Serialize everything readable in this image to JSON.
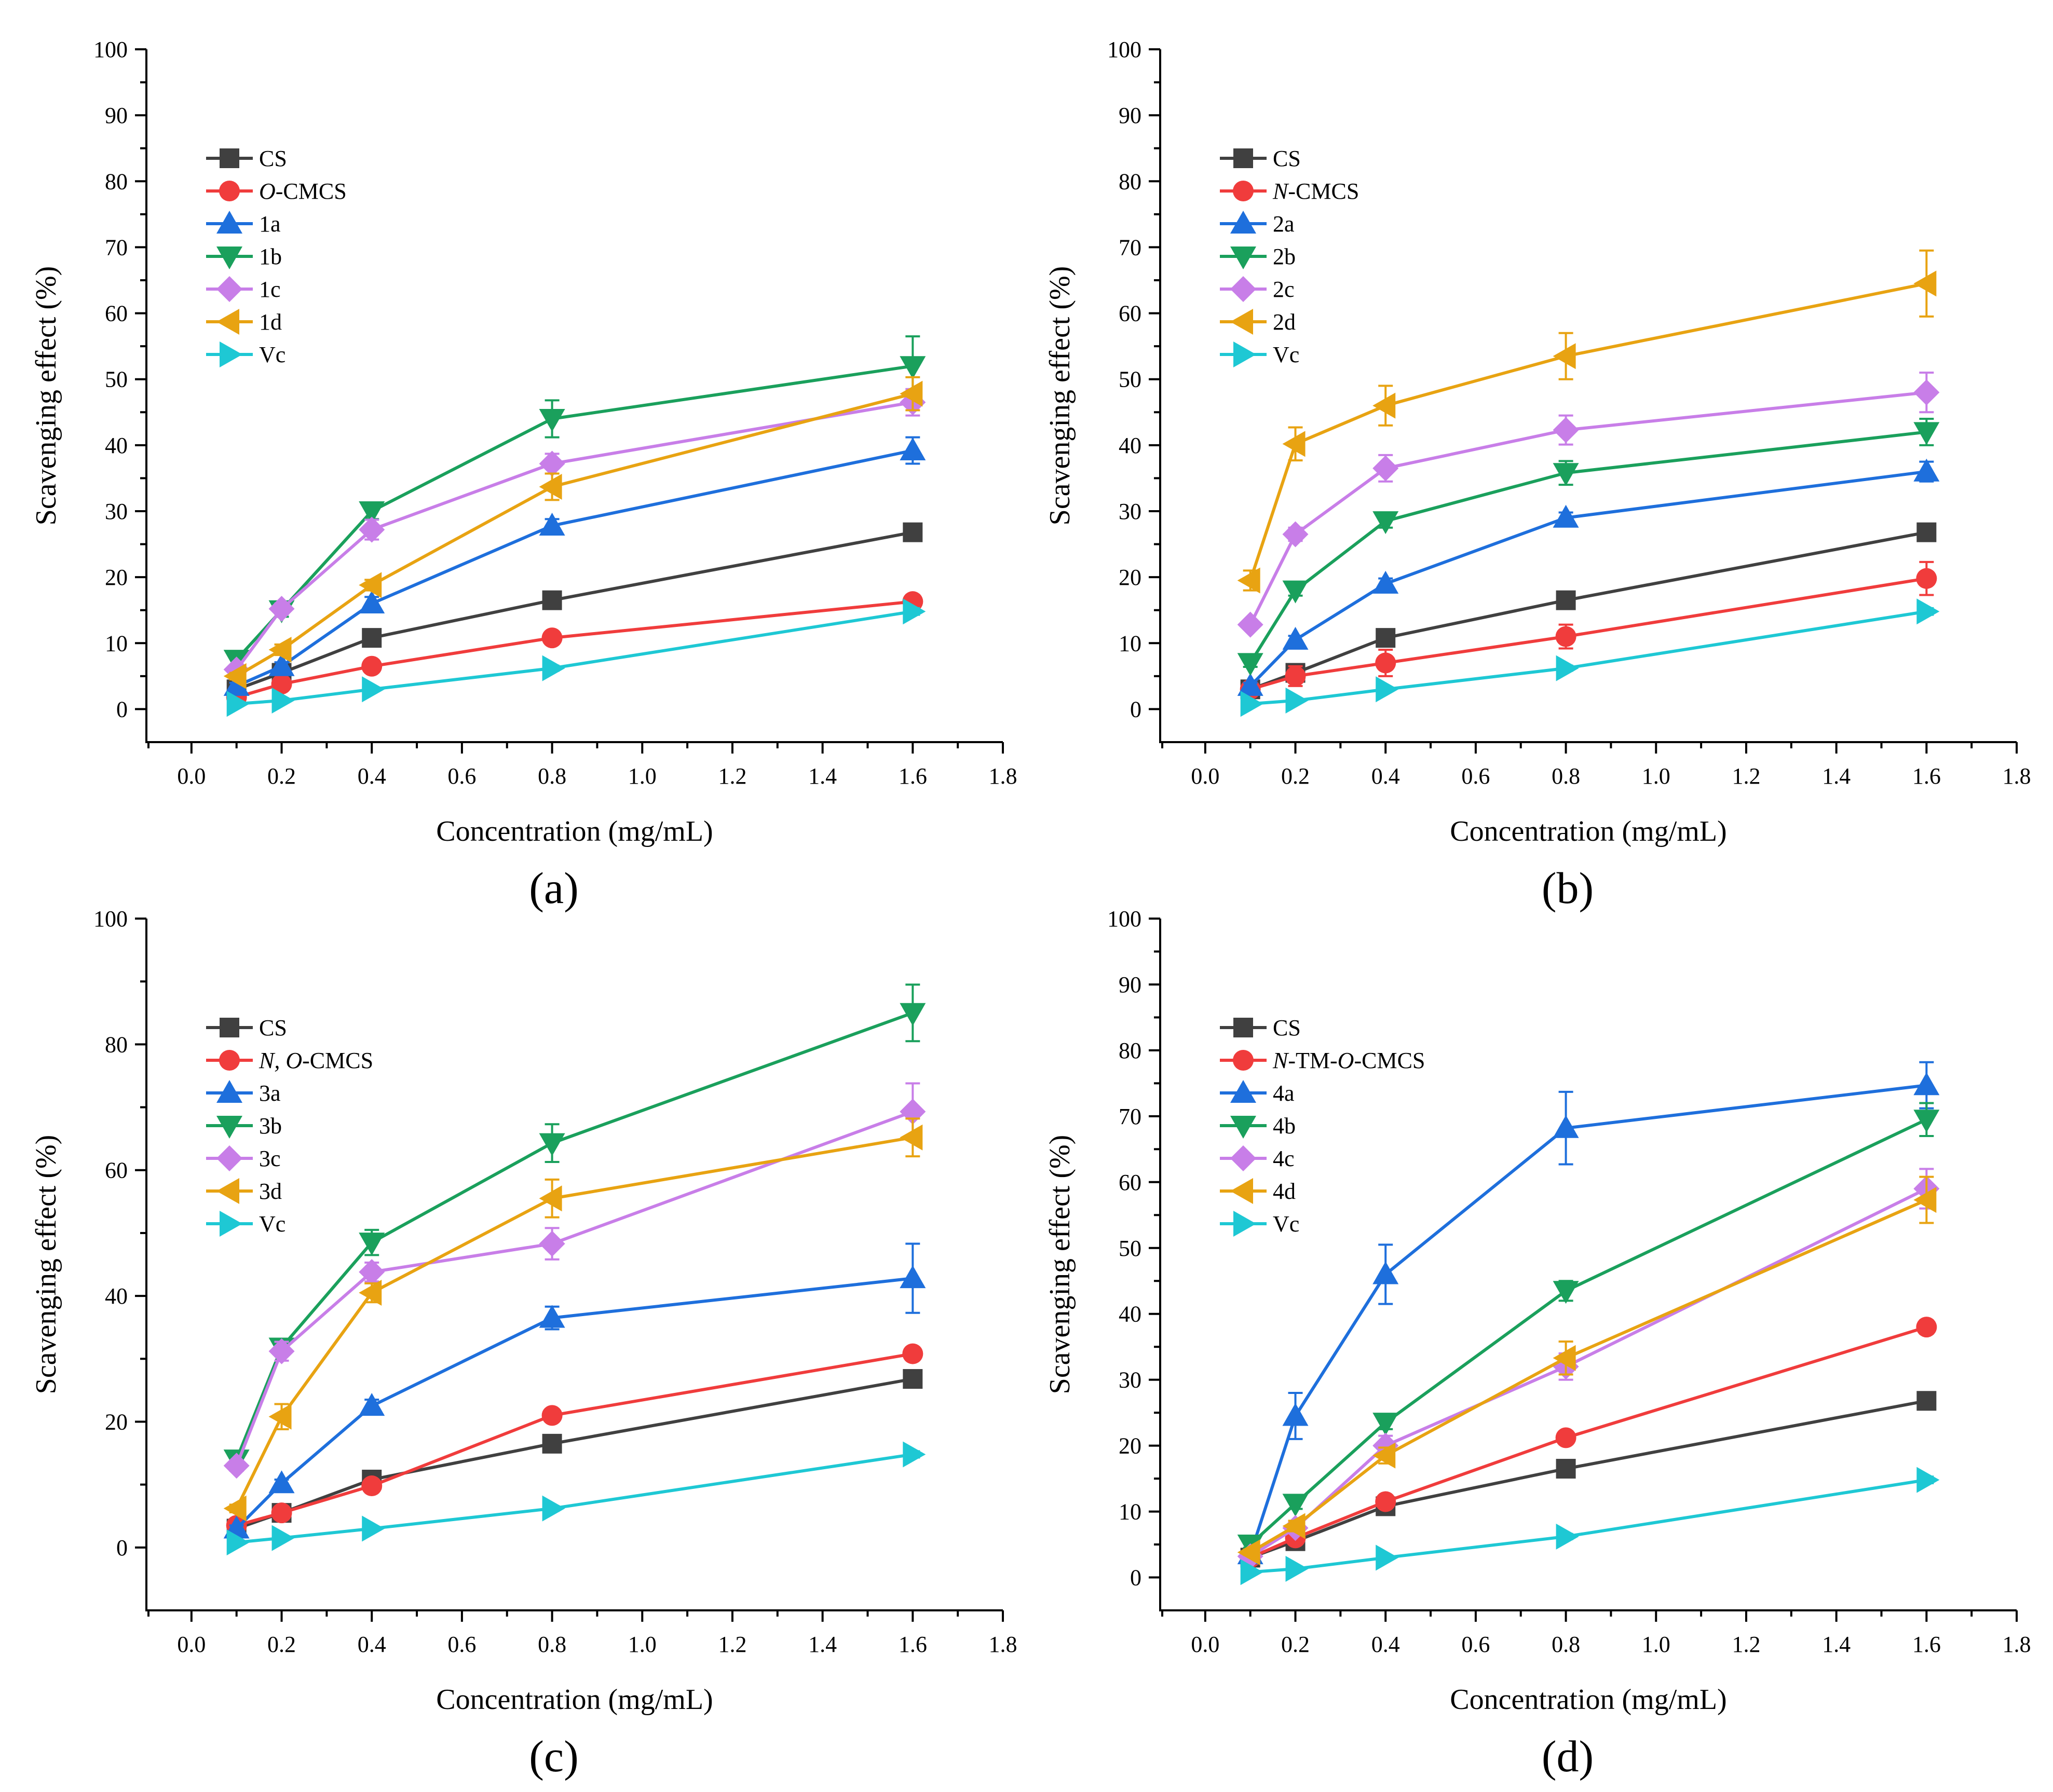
{
  "chart_data": [
    {
      "type": "line",
      "panel": "(a)",
      "xlabel": "Concentration (mg/mL)",
      "ylabel": "Scavenging effect (%)",
      "xlim": [
        -0.1,
        1.8
      ],
      "ylim": [
        -5,
        100
      ],
      "xticks": [
        "0.0",
        "0.2",
        "0.4",
        "0.6",
        "0.8",
        "1.0",
        "1.2",
        "1.4",
        "1.6",
        "1.8"
      ],
      "yticks": [
        "0",
        "10",
        "20",
        "30",
        "40",
        "50",
        "60",
        "70",
        "80",
        "90",
        "100"
      ],
      "x": [
        0.1,
        0.2,
        0.4,
        0.8,
        1.6
      ],
      "legend_position": "upper-left",
      "series": [
        {
          "name": "CS",
          "italic_prefix": "",
          "suffix": "CS",
          "color": "#404040",
          "marker": "square",
          "values": [
            3.0,
            5.5,
            10.8,
            16.5,
            26.8
          ],
          "errors": [
            0.4,
            0.5,
            0.6,
            0.8,
            0.8
          ]
        },
        {
          "name": "O-CMCS",
          "italic_prefix": "O",
          "suffix": "-CMCS",
          "color": "#f03c3c",
          "marker": "circle",
          "values": [
            1.8,
            3.8,
            6.5,
            10.8,
            16.3
          ],
          "errors": [
            0.3,
            0.4,
            0.5,
            0.6,
            0.8
          ]
        },
        {
          "name": "1a",
          "italic_prefix": "",
          "suffix": "1a",
          "color": "#1e6fdc",
          "marker": "triangle-up",
          "values": [
            3.5,
            6.5,
            16.0,
            27.8,
            39.2
          ],
          "errors": [
            0.5,
            0.6,
            1.0,
            1.0,
            2.0
          ]
        },
        {
          "name": "1b",
          "italic_prefix": "",
          "suffix": "1b",
          "color": "#1aa05c",
          "marker": "triangle-down",
          "values": [
            7.5,
            15.0,
            30.0,
            44.0,
            52.0
          ],
          "errors": [
            1.2,
            1.0,
            1.2,
            2.8,
            4.5
          ]
        },
        {
          "name": "1c",
          "italic_prefix": "",
          "suffix": "1c",
          "color": "#c87ee8",
          "marker": "diamond",
          "values": [
            6.0,
            15.2,
            27.2,
            37.2,
            46.5
          ],
          "errors": [
            0.6,
            0.8,
            1.5,
            1.5,
            2.0
          ]
        },
        {
          "name": "1d",
          "italic_prefix": "",
          "suffix": "1d",
          "color": "#e8a312",
          "marker": "triangle-left",
          "values": [
            5.0,
            9.0,
            18.8,
            33.7,
            47.8
          ],
          "errors": [
            0.5,
            0.8,
            0.8,
            2.0,
            2.5
          ]
        },
        {
          "name": "Vc",
          "italic_prefix": "",
          "suffix": "Vc",
          "color": "#1ec8d4",
          "marker": "triangle-right",
          "values": [
            0.8,
            1.3,
            3.0,
            6.2,
            14.8
          ],
          "errors": [
            0.2,
            0.2,
            0.3,
            0.4,
            0.5
          ]
        }
      ]
    },
    {
      "type": "line",
      "panel": "(b)",
      "xlabel": "Concentration (mg/mL)",
      "ylabel": "Scavenging effect (%)",
      "xlim": [
        -0.1,
        1.8
      ],
      "ylim": [
        -5,
        100
      ],
      "xticks": [
        "0.0",
        "0.2",
        "0.4",
        "0.6",
        "0.8",
        "1.0",
        "1.2",
        "1.4",
        "1.6",
        "1.8"
      ],
      "yticks": [
        "0",
        "10",
        "20",
        "30",
        "40",
        "50",
        "60",
        "70",
        "80",
        "90",
        "100"
      ],
      "x": [
        0.1,
        0.2,
        0.4,
        0.8,
        1.6
      ],
      "legend_position": "upper-left",
      "series": [
        {
          "name": "CS",
          "italic_prefix": "",
          "suffix": "CS",
          "color": "#404040",
          "marker": "square",
          "values": [
            3.0,
            5.5,
            10.8,
            16.5,
            26.8
          ],
          "errors": [
            0.4,
            0.5,
            0.6,
            0.8,
            0.8
          ]
        },
        {
          "name": "N-CMCS",
          "italic_prefix": "N",
          "suffix": "-CMCS",
          "color": "#f03c3c",
          "marker": "circle",
          "values": [
            3.0,
            5.0,
            7.0,
            11.0,
            19.8
          ],
          "errors": [
            0.5,
            1.5,
            2.0,
            1.8,
            2.5
          ]
        },
        {
          "name": "2a",
          "italic_prefix": "",
          "suffix": "2a",
          "color": "#1e6fdc",
          "marker": "triangle-up",
          "values": [
            3.5,
            10.5,
            19.0,
            29.0,
            36.0
          ],
          "errors": [
            0.5,
            0.6,
            0.8,
            0.8,
            1.5
          ]
        },
        {
          "name": "2b",
          "italic_prefix": "",
          "suffix": "2b",
          "color": "#1aa05c",
          "marker": "triangle-down",
          "values": [
            7.0,
            18.0,
            28.5,
            35.8,
            42.0
          ],
          "errors": [
            0.6,
            0.8,
            1.0,
            1.8,
            2.0
          ]
        },
        {
          "name": "2c",
          "italic_prefix": "",
          "suffix": "2c",
          "color": "#c87ee8",
          "marker": "diamond",
          "values": [
            12.8,
            26.5,
            36.5,
            42.3,
            48.0
          ],
          "errors": [
            0.6,
            1.0,
            2.0,
            2.2,
            3.0
          ]
        },
        {
          "name": "2d",
          "italic_prefix": "",
          "suffix": "2d",
          "color": "#e8a312",
          "marker": "triangle-left",
          "values": [
            19.5,
            40.2,
            46.0,
            53.5,
            64.5
          ],
          "errors": [
            1.5,
            2.5,
            3.0,
            3.5,
            5.0
          ]
        },
        {
          "name": "Vc",
          "italic_prefix": "",
          "suffix": "Vc",
          "color": "#1ec8d4",
          "marker": "triangle-right",
          "values": [
            0.8,
            1.3,
            3.0,
            6.2,
            14.8
          ],
          "errors": [
            0.2,
            0.2,
            0.3,
            0.4,
            0.5
          ]
        }
      ]
    },
    {
      "type": "line",
      "panel": "(c)",
      "xlabel": "Concentration (mg/mL)",
      "ylabel": "Scavenging effect (%)",
      "xlim": [
        -0.1,
        1.8
      ],
      "ylim": [
        -10,
        100
      ],
      "xticks": [
        "0.0",
        "0.2",
        "0.4",
        "0.6",
        "0.8",
        "1.0",
        "1.2",
        "1.4",
        "1.6",
        "1.8"
      ],
      "yticks": [
        "0",
        "20",
        "40",
        "60",
        "80",
        "100"
      ],
      "x": [
        0.1,
        0.2,
        0.4,
        0.8,
        1.6
      ],
      "legend_position": "upper-left",
      "series": [
        {
          "name": "CS",
          "italic_prefix": "",
          "suffix": "CS",
          "color": "#404040",
          "marker": "square",
          "values": [
            3.0,
            5.5,
            10.8,
            16.5,
            26.8
          ],
          "errors": [
            0.4,
            0.5,
            0.6,
            0.8,
            0.8
          ]
        },
        {
          "name": "N, O-CMCS",
          "italic_prefix": "N, O",
          "suffix": "-CMCS",
          "color": "#f03c3c",
          "marker": "circle",
          "values": [
            3.5,
            5.5,
            9.8,
            21.0,
            30.8
          ],
          "errors": [
            0.4,
            0.5,
            0.8,
            0.8,
            1.0
          ]
        },
        {
          "name": "3a",
          "italic_prefix": "",
          "suffix": "3a",
          "color": "#1e6fdc",
          "marker": "triangle-up",
          "values": [
            3.0,
            10.2,
            22.5,
            36.5,
            42.8
          ],
          "errors": [
            0.5,
            0.6,
            1.0,
            1.8,
            5.5
          ]
        },
        {
          "name": "3b",
          "italic_prefix": "",
          "suffix": "3b",
          "color": "#1aa05c",
          "marker": "triangle-down",
          "values": [
            14.0,
            31.8,
            48.5,
            64.3,
            85.0
          ],
          "errors": [
            1.0,
            1.2,
            2.0,
            3.0,
            4.5
          ]
        },
        {
          "name": "3c",
          "italic_prefix": "",
          "suffix": "3c",
          "color": "#c87ee8",
          "marker": "diamond",
          "values": [
            13.0,
            31.2,
            43.8,
            48.3,
            69.3
          ],
          "errors": [
            0.8,
            1.5,
            1.5,
            2.5,
            4.5
          ]
        },
        {
          "name": "3d",
          "italic_prefix": "",
          "suffix": "3d",
          "color": "#e8a312",
          "marker": "triangle-left",
          "values": [
            6.2,
            20.8,
            40.5,
            55.5,
            65.2
          ],
          "errors": [
            0.6,
            2.0,
            1.5,
            3.0,
            3.0
          ]
        },
        {
          "name": "Vc",
          "italic_prefix": "",
          "suffix": "Vc",
          "color": "#1ec8d4",
          "marker": "triangle-right",
          "values": [
            0.8,
            1.5,
            3.0,
            6.2,
            14.8
          ],
          "errors": [
            0.2,
            0.2,
            0.3,
            0.4,
            0.5
          ]
        }
      ]
    },
    {
      "type": "line",
      "panel": "(d)",
      "xlabel": "Concentration (mg/mL)",
      "ylabel": "Scavenging effect (%)",
      "xlim": [
        -0.1,
        1.8
      ],
      "ylim": [
        -5,
        100
      ],
      "xticks": [
        "0.0",
        "0.2",
        "0.4",
        "0.6",
        "0.8",
        "1.0",
        "1.2",
        "1.4",
        "1.6",
        "1.8"
      ],
      "yticks": [
        "0",
        "10",
        "20",
        "30",
        "40",
        "50",
        "60",
        "70",
        "80",
        "90",
        "100"
      ],
      "x": [
        0.1,
        0.2,
        0.4,
        0.8,
        1.6
      ],
      "legend_position": "upper-left",
      "series": [
        {
          "name": "CS",
          "italic_prefix": "",
          "suffix": "CS",
          "color": "#404040",
          "marker": "square",
          "values": [
            3.0,
            5.5,
            10.8,
            16.5,
            26.8
          ],
          "errors": [
            0.4,
            0.5,
            0.6,
            0.8,
            0.8
          ]
        },
        {
          "name": "N-TM-O-CMCS",
          "italic_prefix": "N",
          "suffix": "-TM-",
          "italic_mid": "O",
          "suffix2": "-CMCS",
          "color": "#f03c3c",
          "marker": "circle",
          "values": [
            3.0,
            6.0,
            11.5,
            21.2,
            38.0
          ],
          "errors": [
            0.3,
            0.5,
            0.6,
            0.8,
            1.0
          ]
        },
        {
          "name": "4a",
          "italic_prefix": "",
          "suffix": "4a",
          "color": "#1e6fdc",
          "marker": "triangle-up",
          "values": [
            3.5,
            24.5,
            46.0,
            68.2,
            74.7
          ],
          "errors": [
            0.5,
            3.5,
            4.5,
            5.5,
            3.5
          ]
        },
        {
          "name": "4b",
          "italic_prefix": "",
          "suffix": "4b",
          "color": "#1aa05c",
          "marker": "triangle-down",
          "values": [
            5.0,
            11.2,
            23.5,
            43.5,
            69.5
          ],
          "errors": [
            0.5,
            0.8,
            1.0,
            1.5,
            2.5
          ]
        },
        {
          "name": "4c",
          "italic_prefix": "",
          "suffix": "4c",
          "color": "#c87ee8",
          "marker": "diamond",
          "values": [
            3.2,
            7.5,
            20.0,
            32.0,
            59.0
          ],
          "errors": [
            0.4,
            0.8,
            1.5,
            2.0,
            3.0
          ]
        },
        {
          "name": "4d",
          "italic_prefix": "",
          "suffix": "4d",
          "color": "#e8a312",
          "marker": "triangle-left",
          "values": [
            3.8,
            7.8,
            18.5,
            33.3,
            57.3
          ],
          "errors": [
            0.4,
            0.8,
            1.2,
            2.5,
            3.5
          ]
        },
        {
          "name": "Vc",
          "italic_prefix": "",
          "suffix": "Vc",
          "color": "#1ec8d4",
          "marker": "triangle-right",
          "values": [
            0.8,
            1.3,
            3.0,
            6.2,
            14.8
          ],
          "errors": [
            0.2,
            0.2,
            0.3,
            0.4,
            0.5
          ]
        }
      ]
    }
  ]
}
